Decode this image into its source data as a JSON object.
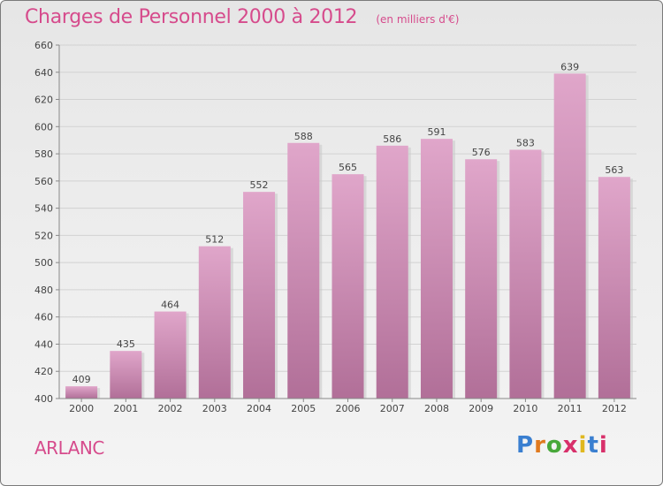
{
  "header": {
    "title": "Charges de Personnel 2000 à 2012",
    "subtitle": "(en milliers d'€)"
  },
  "footer": {
    "location": "ARLANC",
    "brand": "Proxiti",
    "brand_colors": [
      "#3a7fd0",
      "#e07a1f",
      "#48a83a",
      "#d8306a",
      "#e0b81f",
      "#3a7fd0",
      "#d8306a"
    ]
  },
  "colors": {
    "bar_top": "#e0a6ca",
    "bar_bottom": "#b16f98",
    "title": "#d64b8c"
  },
  "chart_data": {
    "type": "bar",
    "title": "Charges de Personnel 2000 à 2012",
    "subtitle": "(en milliers d'€)",
    "categories": [
      "2000",
      "2001",
      "2002",
      "2003",
      "2004",
      "2005",
      "2006",
      "2007",
      "2008",
      "2009",
      "2010",
      "2011",
      "2012"
    ],
    "values": [
      409,
      435,
      464,
      512,
      552,
      588,
      565,
      586,
      591,
      576,
      583,
      639,
      563
    ],
    "ylim": [
      400,
      660
    ],
    "yticks": [
      400,
      420,
      440,
      460,
      480,
      500,
      520,
      540,
      560,
      580,
      600,
      620,
      640,
      660
    ],
    "grid": true,
    "data_labels": true
  }
}
